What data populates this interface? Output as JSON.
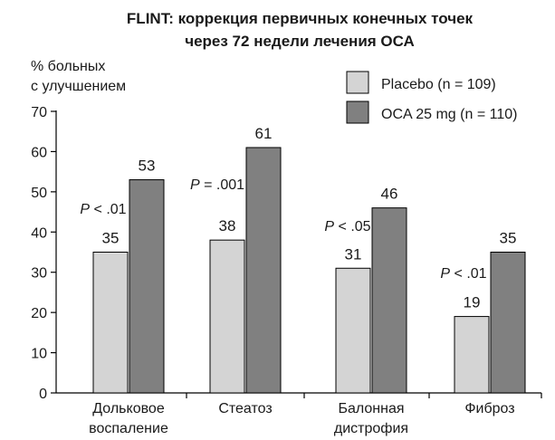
{
  "chart_data": {
    "type": "bar",
    "title_lines": [
      "FLINT: коррекция первичных конечных точек",
      "через 72 недели лечения ОСА"
    ],
    "ylabel_lines": [
      "% больных",
      "с улучшением"
    ],
    "ylim": [
      0,
      70
    ],
    "yticks": [
      0,
      10,
      20,
      30,
      40,
      50,
      60,
      70
    ],
    "categories": [
      [
        "Дольковое",
        "воспаление"
      ],
      [
        "Стеатоз"
      ],
      [
        "Балонная",
        "дистрофия"
      ],
      [
        "Фиброз"
      ]
    ],
    "series": [
      {
        "name": "Placebo (n = 109)",
        "values": [
          35,
          38,
          31,
          19
        ],
        "color": "#d4d4d4"
      },
      {
        "name": "OCA 25 mg (n = 110)",
        "values": [
          53,
          61,
          46,
          35
        ],
        "color": "#808080"
      }
    ],
    "p_values": [
      {
        "prefix": "P",
        "rest": " < .01"
      },
      {
        "prefix": "P",
        "rest": " = .001"
      },
      {
        "prefix": "P",
        "rest": " < .05"
      },
      {
        "prefix": "P",
        "rest": " < .01"
      }
    ],
    "legend_position": "top-right",
    "grid": false
  }
}
